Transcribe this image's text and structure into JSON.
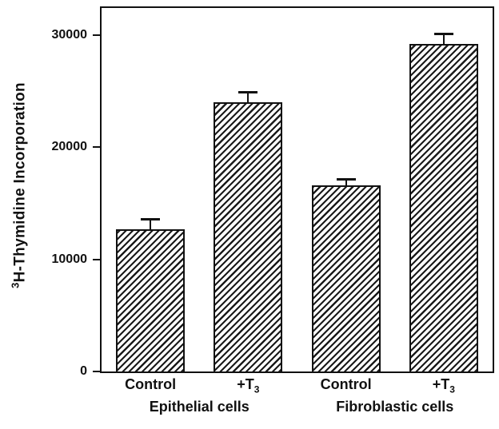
{
  "chart_data": {
    "type": "bar",
    "title": "",
    "ylabel_sup": "3",
    "ylabel_main": "H-Thymidine Incorporation",
    "xlabel": "",
    "ylim": [
      0,
      32400
    ],
    "yticks": [
      0,
      10000,
      20000,
      30000
    ],
    "ytick_labels": [
      "0",
      "10000",
      "20000",
      "30000"
    ],
    "grid": false,
    "legend": "none",
    "bar_fill": "diagonal-hatch",
    "bar_edge_color": "#111111",
    "categories": [
      "Control",
      "+T3",
      "Control",
      "+T3"
    ],
    "x_tick_labels": [
      {
        "text": "Control",
        "sub": ""
      },
      {
        "text": "+T",
        "sub": "3"
      },
      {
        "text": "Control",
        "sub": ""
      },
      {
        "text": "+T",
        "sub": "3"
      }
    ],
    "values": [
      12700,
      24000,
      16600,
      29200
    ],
    "errors": [
      1000,
      1000,
      600,
      1000
    ],
    "groups": [
      {
        "label": "Epithelial cells",
        "bar_indices": [
          0,
          1
        ]
      },
      {
        "label": "Fibroblastic cells",
        "bar_indices": [
          2,
          3
        ]
      }
    ]
  }
}
